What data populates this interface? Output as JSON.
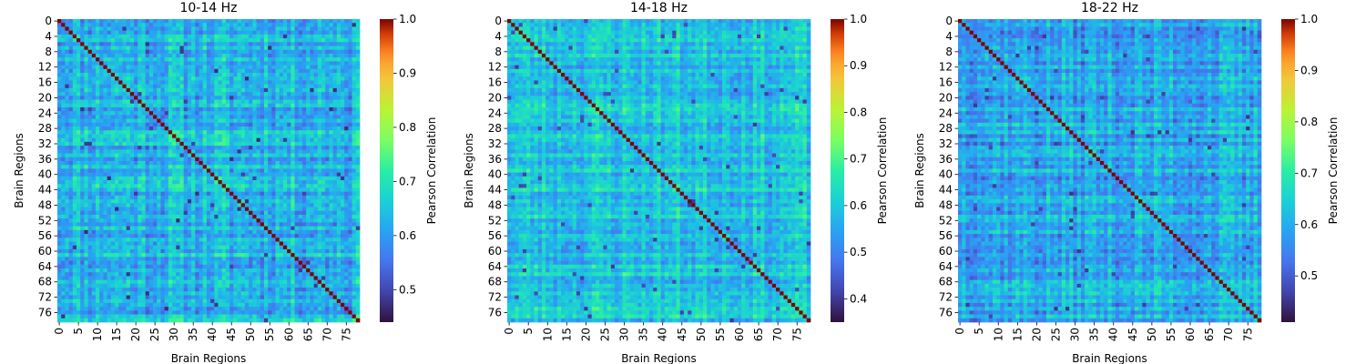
{
  "chart_data": [
    {
      "type": "heatmap",
      "title": "10-14 Hz",
      "xlabel": "Brain Regions",
      "ylabel": "Brain Regions",
      "n_regions": 79,
      "x_ticks": [
        0,
        5,
        10,
        15,
        20,
        25,
        30,
        35,
        40,
        45,
        50,
        55,
        60,
        65,
        70,
        75
      ],
      "y_ticks": [
        0,
        4,
        8,
        12,
        16,
        20,
        24,
        28,
        32,
        36,
        40,
        44,
        48,
        52,
        56,
        60,
        64,
        68,
        72,
        76
      ],
      "colorbar": {
        "label": "Pearson Correlation",
        "min": 0.44,
        "max": 1.0,
        "ticks": [
          0.5,
          0.6,
          0.7,
          0.8,
          0.9,
          1.0
        ]
      },
      "diagonal_value": 1.0,
      "offdiag_typical": 0.64,
      "offdiag_range": [
        0.47,
        0.74
      ],
      "seed": 11
    },
    {
      "type": "heatmap",
      "title": "14-18 Hz",
      "xlabel": "Brain Regions",
      "ylabel": "Brain Regions",
      "n_regions": 79,
      "x_ticks": [
        0,
        5,
        10,
        15,
        20,
        25,
        30,
        35,
        40,
        45,
        50,
        55,
        60,
        65,
        70,
        75
      ],
      "y_ticks": [
        0,
        4,
        8,
        12,
        16,
        20,
        24,
        28,
        32,
        36,
        40,
        44,
        48,
        52,
        56,
        60,
        64,
        68,
        72,
        76
      ],
      "colorbar": {
        "label": "Pearson Correlation",
        "min": 0.35,
        "max": 1.0,
        "ticks": [
          0.4,
          0.5,
          0.6,
          0.7,
          0.8,
          0.9,
          1.0
        ]
      },
      "diagonal_value": 1.0,
      "offdiag_typical": 0.6,
      "offdiag_range": [
        0.4,
        0.72
      ],
      "seed": 23
    },
    {
      "type": "heatmap",
      "title": "18-22 Hz",
      "xlabel": "Brain Regions",
      "ylabel": "Brain Regions",
      "n_regions": 79,
      "x_ticks": [
        0,
        5,
        10,
        15,
        20,
        25,
        30,
        35,
        40,
        45,
        50,
        55,
        60,
        65,
        70,
        75
      ],
      "y_ticks": [
        0,
        4,
        8,
        12,
        16,
        20,
        24,
        28,
        32,
        36,
        40,
        44,
        48,
        52,
        56,
        60,
        64,
        68,
        72,
        76
      ],
      "colorbar": {
        "label": "Pearson Correlation",
        "min": 0.41,
        "max": 1.0,
        "ticks": [
          0.5,
          0.6,
          0.7,
          0.8,
          0.9,
          1.0
        ]
      },
      "diagonal_value": 1.0,
      "offdiag_typical": 0.6,
      "offdiag_range": [
        0.45,
        0.7
      ],
      "seed": 37
    }
  ]
}
